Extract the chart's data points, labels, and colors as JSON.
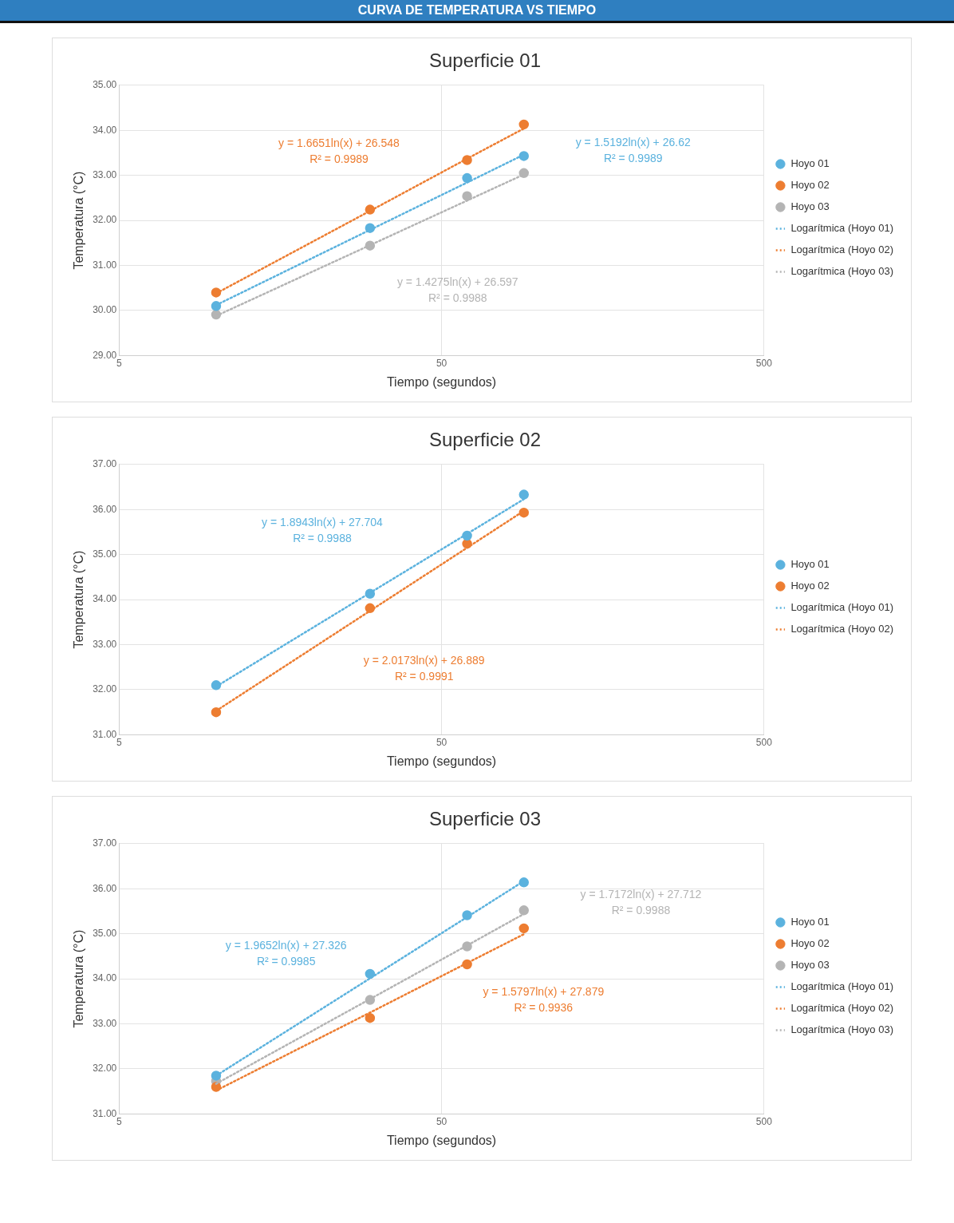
{
  "chart_data": [
    {
      "type": "scatter",
      "title": "Superficie 01",
      "xlabel": "Tiempo (segundos)",
      "ylabel": "Temperatura (°C)",
      "x": [
        10,
        30,
        60,
        90
      ],
      "log": "x",
      "xlim": [
        5,
        500
      ],
      "xticks": [
        5,
        50,
        500
      ],
      "ylim": [
        29,
        35
      ],
      "yticks": [
        {
          "value": 29,
          "label": "29.00"
        },
        {
          "value": 30,
          "label": "30.00"
        },
        {
          "value": 31,
          "label": "31.00"
        },
        {
          "value": 32,
          "label": "32.00"
        },
        {
          "value": 33,
          "label": "33.00"
        },
        {
          "value": 34,
          "label": "34.00"
        },
        {
          "value": 35,
          "label": "35.00"
        }
      ],
      "grid": true,
      "legend": "right",
      "marker": "circle",
      "series": [
        {
          "name": "Hoyo 01",
          "color": "#5bb2de",
          "values": [
            30.1,
            31.83,
            32.94,
            33.43
          ]
        },
        {
          "name": "Hoyo 02",
          "color": "#ed7d31",
          "values": [
            30.4,
            32.24,
            33.34,
            34.13
          ]
        },
        {
          "name": "Hoyo 03",
          "color": "#b4b4b4",
          "values": [
            29.91,
            31.44,
            32.54,
            33.05
          ]
        },
        {
          "type": "line",
          "name": "Logarítmica (Hoyo 01)",
          "color": "#5bb2de",
          "values": [
            30.12,
            31.79,
            32.84,
            33.46
          ],
          "marker": "none",
          "line_style": "dotted"
        },
        {
          "type": "line",
          "name": "Logarítmica (Hoyo 02)",
          "color": "#ed7d31",
          "values": [
            30.38,
            32.21,
            33.37,
            34.04
          ],
          "marker": "none",
          "line_style": "dotted"
        },
        {
          "type": "line",
          "name": "Logarítmica (Hoyo 03)",
          "color": "#b4b4b4",
          "values": [
            29.88,
            31.45,
            32.44,
            33.02
          ],
          "marker": "none",
          "line_style": "dotted"
        }
      ],
      "annotations": [
        "CURVA DE TEMPERATURA VS TIEMPO",
        "y = 1.5192ln(x) + 26.62\nR² = 0.9989",
        "y = 1.6651ln(x) + 26.548\nR² = 0.9989",
        "y = 1.4275ln(x) + 26.597\nR² = 0.9988"
      ]
    },
    {
      "type": "scatter",
      "title": "Superficie 02",
      "xlabel": "Tiempo (segundos)",
      "ylabel": "Temperatura (°C)",
      "x": [
        10,
        30,
        60,
        90
      ],
      "log": "x",
      "xlim": [
        5,
        500
      ],
      "xticks": [
        5,
        50,
        500
      ],
      "ylim": [
        31,
        37
      ],
      "yticks": [
        {
          "value": 31,
          "label": "31.00"
        },
        {
          "value": 32,
          "label": "32.00"
        },
        {
          "value": 33,
          "label": "33.00"
        },
        {
          "value": 34,
          "label": "34.00"
        },
        {
          "value": 35,
          "label": "35.00"
        },
        {
          "value": 36,
          "label": "36.00"
        },
        {
          "value": 37,
          "label": "37.00"
        }
      ],
      "grid": true,
      "legend": "right",
      "marker": "circle",
      "series": [
        {
          "name": "Hoyo 01",
          "color": "#5bb2de",
          "values": [
            32.1,
            34.13,
            35.42,
            36.33
          ]
        },
        {
          "name": "Hoyo 02",
          "color": "#ed7d31",
          "values": [
            31.5,
            33.81,
            35.24,
            35.93
          ]
        },
        {
          "type": "line",
          "name": "Logarítmica (Hoyo 01)",
          "color": "#5bb2de",
          "values": [
            32.07,
            34.15,
            35.46,
            36.23
          ],
          "marker": "none",
          "line_style": "dotted"
        },
        {
          "type": "line",
          "name": "Logarítmica (Hoyo 02)",
          "color": "#ed7d31",
          "values": [
            31.53,
            33.75,
            35.15,
            35.97
          ],
          "marker": "none",
          "line_style": "dotted"
        }
      ],
      "annotations": [
        "y = 1.8943ln(x) + 27.704\nR² = 0.9988",
        "y = 2.0173ln(x) + 26.889\nR² = 0.9991"
      ]
    },
    {
      "type": "scatter",
      "title": "Superficie 03",
      "xlabel": "Tiempo (segundos)",
      "ylabel": "Temperatura (°C)",
      "x": [
        10,
        30,
        60,
        90
      ],
      "log": "x",
      "xlim": [
        5,
        500
      ],
      "xticks": [
        5,
        50,
        500
      ],
      "ylim": [
        31,
        37
      ],
      "yticks": [
        {
          "value": 31,
          "label": "31.00"
        },
        {
          "value": 32,
          "label": "32.00"
        },
        {
          "value": 33,
          "label": "33.00"
        },
        {
          "value": 34,
          "label": "34.00"
        },
        {
          "value": 35,
          "label": "35.00"
        },
        {
          "value": 36,
          "label": "36.00"
        },
        {
          "value": 37,
          "label": "37.00"
        }
      ],
      "grid": true,
      "legend": "right",
      "marker": "circle",
      "series": [
        {
          "name": "Hoyo 01",
          "color": "#5bb2de",
          "values": [
            31.85,
            34.11,
            35.41,
            36.14
          ]
        },
        {
          "name": "Hoyo 02",
          "color": "#ed7d31",
          "values": [
            31.6,
            33.13,
            34.32,
            35.12
          ]
        },
        {
          "name": "Hoyo 03",
          "color": "#b4b4b4",
          "values": [
            31.73,
            33.53,
            34.72,
            35.52
          ]
        },
        {
          "type": "line",
          "name": "Logarítmica (Hoyo 01)",
          "color": "#5bb2de",
          "values": [
            31.85,
            34.01,
            35.37,
            36.17
          ],
          "marker": "none",
          "line_style": "dotted"
        },
        {
          "type": "line",
          "name": "Logarítmica (Hoyo 02)",
          "color": "#ed7d31",
          "values": [
            31.52,
            33.25,
            34.35,
            34.99
          ],
          "marker": "none",
          "line_style": "dotted"
        },
        {
          "type": "line",
          "name": "Logarítmica (Hoyo 03)",
          "color": "#b4b4b4",
          "values": [
            31.67,
            33.55,
            34.74,
            35.44
          ],
          "marker": "none",
          "line_style": "dotted"
        }
      ],
      "annotations": [
        "y = 1.9652ln(x) + 27.326\nR² = 0.9985",
        "y = 1.5797ln(x) + 27.879\nR² = 0.9936",
        "y = 1.7172ln(x) + 27.712\nR² = 0.9988"
      ]
    }
  ]
}
